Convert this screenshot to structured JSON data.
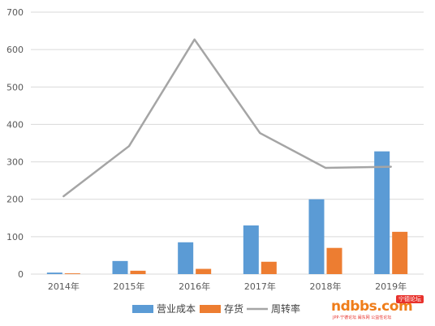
{
  "chart_data": {
    "type": "bar",
    "categories": [
      "2014年",
      "2015年",
      "2016年",
      "2017年",
      "2018年",
      "2019年"
    ],
    "series": [
      {
        "name": "营业成本",
        "type": "bar",
        "color": "#5b9bd5",
        "values": [
          4,
          35,
          85,
          130,
          200,
          328
        ]
      },
      {
        "name": "存货",
        "type": "bar",
        "color": "#ed7d31",
        "values": [
          2,
          9,
          14,
          33,
          70,
          113
        ]
      },
      {
        "name": "周转率",
        "type": "line",
        "color": "#a5a5a5",
        "values": [
          208,
          342,
          627,
          377,
          284,
          287
        ]
      }
    ],
    "yticks": [
      "0",
      "100",
      "200",
      "300",
      "400",
      "500",
      "600",
      "700"
    ],
    "ylim": [
      0,
      700
    ],
    "grid": true,
    "legend_position": "bottom"
  },
  "watermark": {
    "main": "ndbbs.com",
    "badge": "宁德论坛",
    "sub": "JPP·宁德论坛 闽东网 公益性论坛"
  }
}
